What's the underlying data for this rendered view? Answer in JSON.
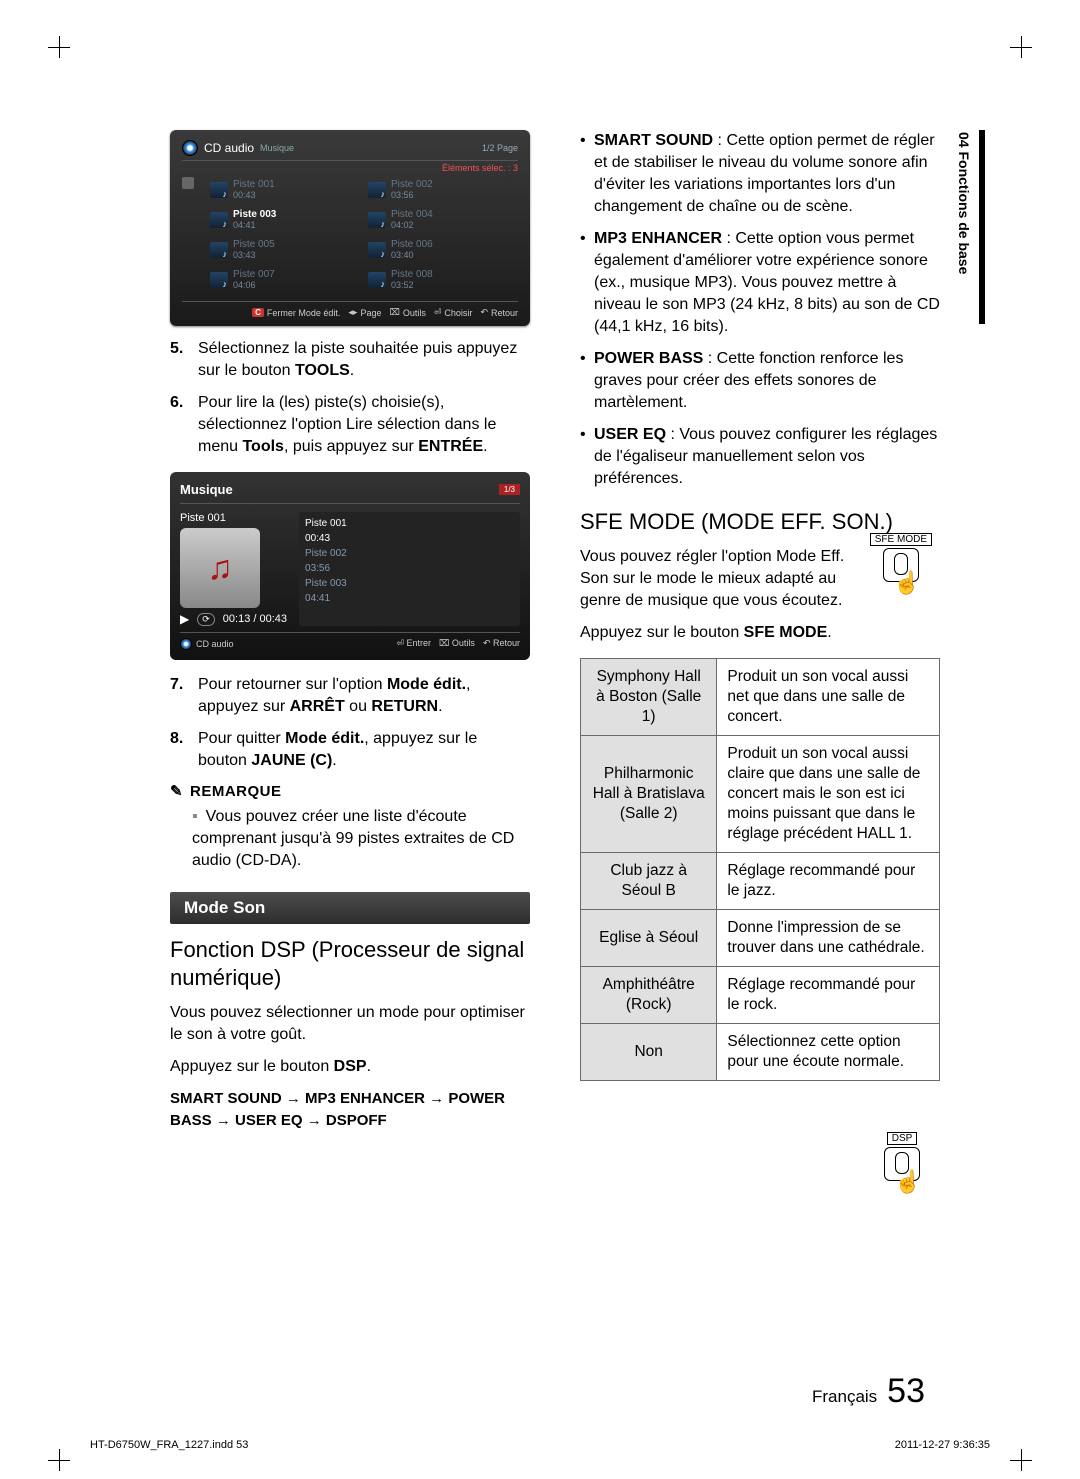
{
  "sideTab": "04  Fonctions de base",
  "shot1": {
    "title": "CD audio",
    "sub": "Musique",
    "page": "1/2 Page",
    "selected": "Éléments sélec. : 3",
    "tracks": [
      {
        "name": "Piste 001",
        "time": "00:43",
        "hl": false,
        "dim": true
      },
      {
        "name": "Piste 002",
        "time": "03:56",
        "hl": false,
        "dim": true
      },
      {
        "name": "Piste 003",
        "time": "04:41",
        "hl": true,
        "dim": false
      },
      {
        "name": "Piste 004",
        "time": "04:02",
        "hl": false,
        "dim": true
      },
      {
        "name": "Piste 005",
        "time": "03:43",
        "hl": false,
        "dim": true
      },
      {
        "name": "Piste 006",
        "time": "03:40",
        "hl": false,
        "dim": true
      },
      {
        "name": "Piste 007",
        "time": "04:06",
        "hl": false,
        "dim": true
      },
      {
        "name": "Piste 008",
        "time": "03:52",
        "hl": false,
        "dim": true
      }
    ],
    "footer": {
      "close": "Fermer Mode édit.",
      "closeKey": "C",
      "page": "Page",
      "tools": "Outils",
      "choose": "Choisir",
      "ret": "Retour"
    }
  },
  "steps1": {
    "s5": {
      "n": "5.",
      "t": "Sélectionnez la piste souhaitée puis appuyez sur le bouton ",
      "b": "TOOLS",
      "t2": "."
    },
    "s6": {
      "n": "6.",
      "t": "Pour lire la (les) piste(s) choisie(s), sélectionnez l'option Lire sélection dans le menu ",
      "b": "Tools",
      "t2": ", puis appuyez sur ",
      "b2": "ENTRÉE",
      "t3": "."
    }
  },
  "shot2": {
    "title": "Musique",
    "page": "1/3",
    "left_track": "Piste 001",
    "playtime": "00:13 / 00:43",
    "list": [
      {
        "name": "Piste 001",
        "time": "00:43",
        "cur": true
      },
      {
        "name": "Piste 002",
        "time": "03:56",
        "cur": false
      },
      {
        "name": "Piste 003",
        "time": "04:41",
        "cur": false
      }
    ],
    "bc": "CD audio",
    "foot": {
      "enter": "Entrer",
      "tools": "Outils",
      "ret": "Retour"
    }
  },
  "steps2": {
    "s7": {
      "n": "7.",
      "t": "Pour retourner sur l'option ",
      "b": "Mode édit.",
      "t2": ", appuyez sur ",
      "b2": "ARRÊT",
      "t3": " ou ",
      "b3": "RETURN",
      "t4": "."
    },
    "s8": {
      "n": "8.",
      "t": "Pour quitter ",
      "b": "Mode édit.",
      "t2": ", appuyez sur le bouton ",
      "b2": "JAUNE (C)",
      "t3": "."
    }
  },
  "noteHead": "REMARQUE",
  "note1": "Vous pouvez créer une liste d'écoute comprenant jusqu'à 99 pistes extraites de CD audio (CD-DA).",
  "ribbon": "Mode Son",
  "h2": "Fonction DSP (Processeur de signal numérique)",
  "dspIntro": "Vous pouvez sélectionner un mode pour optimiser le son à votre goût.",
  "dspPress": {
    "a": "Appuyez sur le bouton ",
    "b": "DSP",
    "c": "."
  },
  "dspChain": "SMART SOUND → MP3 ENHANCER → POWER BASS → USER EQ → DSPOFF",
  "dspLabel": "DSP",
  "bullets": [
    {
      "b": "SMART SOUND",
      "t": " : Cette option permet de régler et de stabiliser le niveau du volume sonore afin d'éviter les variations importantes lors d'un changement de chaîne ou de scène."
    },
    {
      "b": "MP3 ENHANCER",
      "t": " : Cette option vous permet également d'améliorer votre expérience sonore (ex., musique MP3). Vous pouvez mettre à niveau le son MP3 (24 kHz, 8 bits) au son de CD (44,1 kHz, 16 bits)."
    },
    {
      "b": "POWER BASS",
      "t": " : Cette fonction renforce les graves pour créer des effets sonores de martèlement."
    },
    {
      "b": "USER EQ",
      "t": " : Vous pouvez configurer les réglages de l'égaliseur manuellement selon vos préférences."
    }
  ],
  "sfeHead": "SFE MODE (MODE EFF. SON.)",
  "sfeIntro": "Vous pouvez régler l'option Mode Eff. Son sur le mode le mieux adapté au genre de musique que vous écoutez.",
  "sfePress": {
    "a": "Appuyez sur le bouton ",
    "b": "SFE MODE",
    "c": "."
  },
  "sfeLabel": "SFE MODE",
  "sfeTable": [
    {
      "k": "Symphony Hall à Boston (Salle 1)",
      "v": "Produit un son vocal aussi net que dans une salle de concert."
    },
    {
      "k": "Philharmonic Hall à Bratislava (Salle 2)",
      "v": "Produit un son vocal aussi claire que dans une salle de concert mais le son est ici moins puissant que dans le réglage précédent HALL 1."
    },
    {
      "k": "Club jazz à Séoul B",
      "v": "Réglage recommandé pour le jazz."
    },
    {
      "k": "Eglise à Séoul",
      "v": "Donne l'impression de se trouver dans une cathédrale."
    },
    {
      "k": "Amphithéâtre (Rock)",
      "v": "Réglage recommandé pour le rock."
    },
    {
      "k": "Non",
      "v": "Sélectionnez cette option pour une écoute normale."
    }
  ],
  "footer": {
    "lang": "Français",
    "page": "53"
  },
  "print": {
    "l": "HT-D6750W_FRA_1227.indd   53",
    "r": "2011-12-27     9:36:35"
  }
}
